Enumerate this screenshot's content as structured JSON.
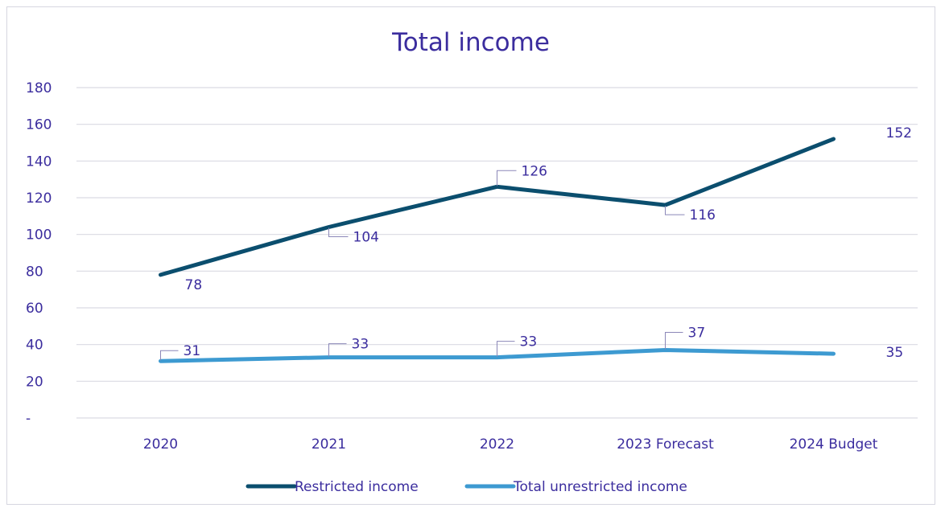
{
  "chart_data": {
    "type": "line",
    "title": "Total income",
    "categories": [
      "2020",
      "2021",
      "2022",
      "2023 Forecast",
      "2024 Budget"
    ],
    "y_ticks": [
      "-",
      "20",
      "40",
      "60",
      "80",
      "100",
      "120",
      "140",
      "160",
      "180"
    ],
    "ylim": [
      0,
      180
    ],
    "grid": true,
    "legend_position": "bottom",
    "series": [
      {
        "name": "Restricted income",
        "values": [
          78,
          104,
          126,
          116,
          152
        ],
        "labels": [
          "78",
          "104",
          "126",
          "116",
          "152"
        ],
        "color": "#0b4e6e"
      },
      {
        "name": "Total unrestricted income",
        "values": [
          31,
          33,
          33,
          37,
          35
        ],
        "labels": [
          "31",
          "33",
          "33",
          "37",
          "35"
        ],
        "color": "#3d9ad1"
      }
    ]
  }
}
